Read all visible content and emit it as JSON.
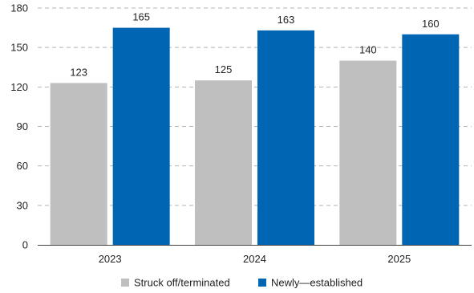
{
  "chart_data": {
    "type": "bar",
    "categories": [
      "2023",
      "2024",
      "2025"
    ],
    "series": [
      {
        "name": "Struck off/terminated",
        "values": [
          123,
          125,
          140
        ],
        "color": "#bfbfbf"
      },
      {
        "name": "Newly—established",
        "values": [
          165,
          163,
          160
        ],
        "color": "#0066b3"
      }
    ],
    "ylim": [
      0,
      180
    ],
    "yticks": [
      0,
      30,
      60,
      90,
      120,
      150,
      180
    ],
    "title": "",
    "xlabel": "",
    "ylabel": "",
    "grid": true,
    "legend_position": "bottom"
  }
}
